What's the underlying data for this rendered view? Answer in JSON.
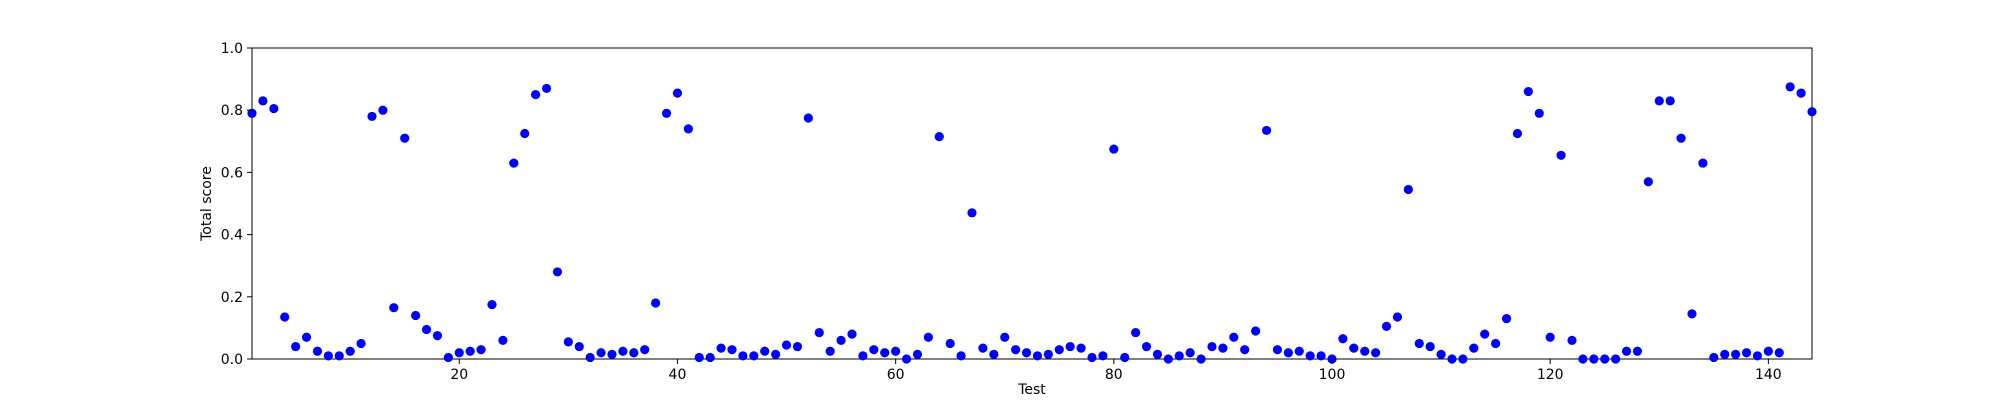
{
  "chart_data": {
    "type": "scatter",
    "title": "",
    "xlabel": "Test",
    "ylabel": "Total score",
    "xlim": [
      1,
      144
    ],
    "ylim": [
      0.0,
      1.0
    ],
    "xticks": [
      20,
      40,
      60,
      80,
      100,
      120,
      140
    ],
    "yticks": [
      0.0,
      0.2,
      0.4,
      0.6,
      0.8,
      1.0
    ],
    "xtick_labels": [
      "20",
      "40",
      "60",
      "80",
      "100",
      "120",
      "140"
    ],
    "ytick_labels": [
      "0.0",
      "0.2",
      "0.4",
      "0.6",
      "0.8",
      "1.0"
    ],
    "grid": false,
    "marker_color": "#0000ff",
    "series": [
      {
        "x": [
          1,
          2,
          3,
          4,
          5,
          6,
          7,
          8,
          9,
          10,
          11,
          12,
          13,
          14,
          15,
          16,
          17,
          18,
          19,
          20,
          21,
          22,
          23,
          24,
          25,
          26,
          27,
          28,
          29,
          30,
          31,
          32,
          33,
          34,
          35,
          36,
          37,
          38,
          39,
          40,
          41,
          42,
          43,
          44,
          45,
          46,
          47,
          48,
          49,
          50,
          51,
          52,
          53,
          54,
          55,
          56,
          57,
          58,
          59,
          60,
          61,
          62,
          63,
          64,
          65,
          66,
          67,
          68,
          69,
          70,
          71,
          72,
          73,
          74,
          75,
          76,
          77,
          78,
          79,
          80,
          81,
          82,
          83,
          84,
          85,
          86,
          87,
          88,
          89,
          90,
          91,
          92,
          93,
          94,
          95,
          96,
          97,
          98,
          99,
          100,
          101,
          102,
          103,
          104,
          105,
          106,
          107,
          108,
          109,
          110,
          111,
          112,
          113,
          114,
          115,
          116,
          117,
          118,
          119,
          120,
          121,
          122,
          123,
          124,
          125,
          126,
          127,
          128,
          129,
          130,
          131,
          132,
          133,
          134,
          135,
          136,
          137,
          138,
          139,
          140,
          141,
          142,
          143,
          144
        ],
        "y": [
          0.79,
          0.83,
          0.805,
          0.135,
          0.04,
          0.07,
          0.025,
          0.01,
          0.01,
          0.025,
          0.05,
          0.78,
          0.8,
          0.165,
          0.71,
          0.14,
          0.095,
          0.075,
          0.005,
          0.02,
          0.025,
          0.03,
          0.175,
          0.06,
          0.63,
          0.725,
          0.85,
          0.87,
          0.28,
          0.055,
          0.04,
          0.005,
          0.02,
          0.015,
          0.025,
          0.02,
          0.03,
          0.18,
          0.79,
          0.855,
          0.74,
          0.005,
          0.005,
          0.035,
          0.03,
          0.01,
          0.01,
          0.025,
          0.015,
          0.045,
          0.04,
          0.775,
          0.085,
          0.025,
          0.06,
          0.08,
          0.01,
          0.03,
          0.02,
          0.025,
          0.0,
          0.015,
          0.07,
          0.715,
          0.05,
          0.01,
          0.47,
          0.035,
          0.015,
          0.07,
          0.03,
          0.02,
          0.01,
          0.015,
          0.03,
          0.04,
          0.035,
          0.005,
          0.01,
          0.675,
          0.005,
          0.085,
          0.04,
          0.015,
          0.0,
          0.01,
          0.02,
          0.0,
          0.04,
          0.035,
          0.07,
          0.03,
          0.09,
          0.735,
          0.03,
          0.02,
          0.025,
          0.01,
          0.01,
          0.0,
          0.065,
          0.035,
          0.025,
          0.02,
          0.105,
          0.135,
          0.545,
          0.05,
          0.04,
          0.015,
          0.0,
          0.0,
          0.035,
          0.08,
          0.05,
          0.13,
          0.725,
          0.86,
          0.79,
          0.07,
          0.655,
          0.06,
          0.0,
          0.0,
          0.0,
          0.0,
          0.025,
          0.025,
          0.57,
          0.83,
          0.83,
          0.71,
          0.145,
          0.63,
          0.005,
          0.015,
          0.015,
          0.02,
          0.01,
          0.025,
          0.02,
          0.875,
          0.855,
          0.795
        ]
      }
    ]
  }
}
